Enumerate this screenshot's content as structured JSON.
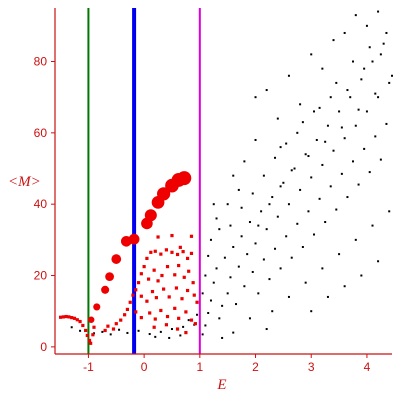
{
  "chart_data": {
    "type": "scatter",
    "title": "",
    "xlabel": "E",
    "ylabel": "<M>",
    "xlim": [
      -1.6,
      4.45
    ],
    "ylim": [
      -2,
      95
    ],
    "x_ticks": [
      -1,
      0,
      1,
      2,
      3,
      4
    ],
    "y_ticks": [
      0,
      20,
      40,
      60,
      80
    ],
    "grid": false,
    "legend": "none",
    "vertical_lines": [
      {
        "x": -1.0,
        "color": "#007700",
        "width": "thin"
      },
      {
        "x": -0.18,
        "color": "#0000ee",
        "width": "thick"
      },
      {
        "x": 1.0,
        "color": "#dd00dd",
        "width": "thin"
      }
    ],
    "series": [
      {
        "color": "#ee0000",
        "marker": "circle",
        "note": "large red points (ground-state branch, size grows with M)",
        "points": [
          [
            -0.95,
            7.6
          ],
          [
            -0.85,
            11.2
          ],
          [
            -0.7,
            16.0
          ],
          [
            -0.62,
            19.7
          ],
          [
            -0.5,
            24.6
          ],
          [
            -0.32,
            29.6
          ],
          [
            -0.18,
            30.2
          ],
          [
            0.05,
            34.6
          ],
          [
            0.12,
            36.9
          ],
          [
            0.25,
            40.5
          ],
          [
            0.35,
            42.9
          ],
          [
            0.5,
            45.2
          ],
          [
            0.62,
            46.8
          ],
          [
            0.72,
            47.3
          ]
        ]
      },
      {
        "color": "#ee0000",
        "marker": "square",
        "note": "small red points (E < 1 region)",
        "points": [
          [
            -1.5,
            8.3
          ],
          [
            -1.45,
            8.4
          ],
          [
            -1.4,
            8.5
          ],
          [
            -1.35,
            8.4
          ],
          [
            -1.3,
            8.2
          ],
          [
            -1.25,
            8.0
          ],
          [
            -1.2,
            7.6
          ],
          [
            -1.15,
            7.1
          ],
          [
            -1.1,
            6.0
          ],
          [
            -1.05,
            4.6
          ],
          [
            -1.02,
            3.2
          ],
          [
            -0.98,
            1.8
          ],
          [
            -0.96,
            1.0
          ],
          [
            -0.92,
            3.4
          ],
          [
            -0.9,
            5.5
          ],
          [
            -0.7,
            4.6
          ],
          [
            -0.65,
            5.8
          ],
          [
            -0.55,
            5.0
          ],
          [
            -0.5,
            6.5
          ],
          [
            -0.42,
            7.5
          ],
          [
            -0.35,
            9.0
          ],
          [
            -0.3,
            10.5
          ],
          [
            -0.25,
            12.5
          ],
          [
            -0.2,
            14.5
          ],
          [
            -0.15,
            16.0
          ],
          [
            -0.1,
            18.0
          ],
          [
            -0.05,
            20.5
          ],
          [
            0.0,
            22.5
          ],
          [
            0.05,
            24.8
          ],
          [
            0.12,
            26.5
          ],
          [
            0.2,
            26.8
          ],
          [
            0.3,
            26.0
          ],
          [
            0.4,
            27.2
          ],
          [
            0.5,
            26.5
          ],
          [
            0.6,
            25.9
          ],
          [
            0.7,
            26.7
          ],
          [
            0.78,
            24.8
          ],
          [
            0.85,
            26.2
          ],
          [
            0.08,
            19.0
          ],
          [
            0.18,
            21.5
          ],
          [
            0.25,
            18.5
          ],
          [
            0.32,
            20.0
          ],
          [
            0.42,
            22.5
          ],
          [
            0.55,
            20.2
          ],
          [
            0.62,
            22.8
          ],
          [
            0.72,
            19.5
          ],
          [
            0.8,
            21.2
          ],
          [
            0.88,
            18.0
          ],
          [
            -0.05,
            14.2
          ],
          [
            0.05,
            12.8
          ],
          [
            0.15,
            15.5
          ],
          [
            0.22,
            13.8
          ],
          [
            0.35,
            16.2
          ],
          [
            0.45,
            14.0
          ],
          [
            0.58,
            16.5
          ],
          [
            0.68,
            13.5
          ],
          [
            0.78,
            15.8
          ],
          [
            0.9,
            14.5
          ],
          [
            0.95,
            12.5
          ],
          [
            -0.15,
            9.8
          ],
          [
            -0.05,
            8.2
          ],
          [
            0.1,
            9.5
          ],
          [
            0.2,
            7.8
          ],
          [
            0.3,
            10.2
          ],
          [
            0.42,
            8.5
          ],
          [
            0.55,
            10.8
          ],
          [
            0.62,
            8.0
          ],
          [
            0.75,
            9.8
          ],
          [
            0.85,
            7.5
          ],
          [
            0.92,
            6.5
          ],
          [
            0.18,
            5.5
          ],
          [
            0.4,
            6.2
          ],
          [
            0.6,
            5.0
          ],
          [
            0.75,
            4.0
          ],
          [
            0.25,
            30.8
          ],
          [
            0.5,
            31.2
          ],
          [
            0.65,
            27.9
          ],
          [
            0.85,
            31.0
          ]
        ]
      },
      {
        "color": "#000000",
        "marker": "dot",
        "note": "small black points (excited states)",
        "points": [
          [
            -1.3,
            5.5
          ],
          [
            -1.15,
            4.5
          ],
          [
            -0.9,
            3.8
          ],
          [
            -0.75,
            4.2
          ],
          [
            -0.6,
            3.5
          ],
          [
            -0.45,
            4.8
          ],
          [
            -0.3,
            3.9
          ],
          [
            -0.1,
            4.5
          ],
          [
            0.1,
            3.6
          ],
          [
            0.3,
            4.2
          ],
          [
            0.5,
            5.0
          ],
          [
            0.7,
            5.6
          ],
          [
            0.9,
            6.2
          ],
          [
            0.2,
            2.8
          ],
          [
            0.45,
            2.5
          ],
          [
            0.65,
            3.2
          ],
          [
            0.8,
            7.5
          ],
          [
            0.95,
            9.0
          ],
          [
            1.05,
            3.5
          ],
          [
            1.1,
            6.0
          ],
          [
            1.15,
            9.5
          ],
          [
            1.2,
            13.0
          ],
          [
            1.25,
            18.0
          ],
          [
            1.3,
            22.0
          ],
          [
            1.35,
            8.0
          ],
          [
            1.4,
            11.5
          ],
          [
            1.45,
            25.0
          ],
          [
            1.5,
            15.0
          ],
          [
            1.55,
            19.5
          ],
          [
            1.6,
            28.0
          ],
          [
            1.65,
            12.0
          ],
          [
            1.7,
            22.5
          ],
          [
            1.75,
            31.0
          ],
          [
            1.8,
            17.0
          ],
          [
            1.85,
            26.0
          ],
          [
            1.9,
            35.0
          ],
          [
            1.95,
            21.0
          ],
          [
            2.0,
            29.0
          ],
          [
            2.05,
            15.0
          ],
          [
            2.1,
            38.0
          ],
          [
            2.15,
            24.5
          ],
          [
            2.2,
            33.0
          ],
          [
            2.25,
            19.0
          ],
          [
            2.3,
            42.0
          ],
          [
            2.35,
            27.5
          ],
          [
            2.4,
            36.5
          ],
          [
            2.45,
            22.0
          ],
          [
            2.5,
            46.0
          ],
          [
            2.55,
            31.0
          ],
          [
            2.6,
            40.0
          ],
          [
            2.65,
            25.0
          ],
          [
            2.7,
            50.0
          ],
          [
            2.75,
            34.5
          ],
          [
            2.8,
            44.0
          ],
          [
            2.85,
            28.0
          ],
          [
            2.9,
            54.0
          ],
          [
            2.95,
            38.0
          ],
          [
            3.0,
            47.5
          ],
          [
            3.05,
            31.5
          ],
          [
            3.1,
            58.0
          ],
          [
            3.15,
            41.5
          ],
          [
            3.2,
            51.0
          ],
          [
            3.25,
            35.0
          ],
          [
            3.3,
            62.0
          ],
          [
            3.35,
            45.0
          ],
          [
            3.4,
            55.0
          ],
          [
            3.45,
            38.5
          ],
          [
            3.5,
            66.0
          ],
          [
            3.55,
            48.5
          ],
          [
            3.6,
            58.5
          ],
          [
            3.65,
            42.0
          ],
          [
            3.7,
            70.0
          ],
          [
            3.75,
            52.0
          ],
          [
            3.8,
            62.0
          ],
          [
            3.85,
            45.5
          ],
          [
            3.9,
            75.0
          ],
          [
            3.95,
            55.5
          ],
          [
            4.0,
            66.0
          ],
          [
            4.05,
            49.0
          ],
          [
            4.1,
            80.0
          ],
          [
            4.15,
            59.0
          ],
          [
            4.2,
            70.0
          ],
          [
            4.25,
            52.5
          ],
          [
            4.3,
            85.0
          ],
          [
            4.35,
            62.5
          ],
          [
            4.4,
            74.0
          ],
          [
            2.0,
            70.0
          ],
          [
            2.2,
            72.0
          ],
          [
            2.4,
            64.0
          ],
          [
            2.6,
            76.0
          ],
          [
            2.8,
            68.0
          ],
          [
            3.0,
            82.0
          ],
          [
            3.2,
            78.0
          ],
          [
            3.4,
            86.0
          ],
          [
            3.6,
            88.0
          ],
          [
            3.8,
            93.0
          ],
          [
            4.0,
            90.0
          ],
          [
            4.2,
            94.0
          ],
          [
            1.6,
            48.0
          ],
          [
            1.8,
            52.0
          ],
          [
            2.0,
            58.0
          ],
          [
            1.5,
            40.0
          ],
          [
            1.7,
            44.0
          ],
          [
            1.3,
            36.0
          ],
          [
            1.2,
            30.0
          ],
          [
            2.3,
            10.0
          ],
          [
            2.6,
            14.0
          ],
          [
            2.9,
            18.0
          ],
          [
            3.2,
            22.0
          ],
          [
            3.5,
            26.0
          ],
          [
            3.8,
            30.0
          ],
          [
            4.1,
            34.0
          ],
          [
            4.4,
            38.0
          ],
          [
            1.9,
            8.0
          ],
          [
            2.2,
            5.0
          ],
          [
            1.6,
            4.0
          ],
          [
            1.4,
            2.5
          ],
          [
            3.0,
            10.0
          ],
          [
            3.3,
            14.0
          ],
          [
            3.6,
            17.0
          ],
          [
            3.9,
            20.0
          ],
          [
            4.2,
            24.0
          ],
          [
            2.45,
            56.0
          ],
          [
            2.75,
            60.0
          ],
          [
            3.05,
            66.0
          ],
          [
            3.35,
            70.0
          ],
          [
            3.65,
            72.0
          ],
          [
            3.95,
            78.0
          ],
          [
            4.25,
            82.0
          ],
          [
            1.1,
            20.0
          ],
          [
            1.05,
            15.0
          ],
          [
            1.15,
            25.5
          ],
          [
            1.25,
            40.0
          ],
          [
            1.35,
            33.0
          ],
          [
            1.55,
            34.0
          ],
          [
            1.75,
            39.0
          ],
          [
            1.95,
            43.0
          ],
          [
            2.15,
            48.0
          ],
          [
            2.35,
            53.0
          ],
          [
            2.55,
            57.0
          ],
          [
            2.85,
            63.0
          ],
          [
            3.15,
            67.0
          ],
          [
            3.45,
            74.0
          ],
          [
            3.75,
            80.0
          ],
          [
            4.05,
            84.0
          ],
          [
            4.35,
            88.0
          ],
          [
            2.05,
            34.0
          ],
          [
            2.25,
            40.0
          ],
          [
            2.45,
            45.0
          ],
          [
            2.65,
            49.5
          ],
          [
            2.95,
            53.5
          ],
          [
            3.25,
            57.5
          ],
          [
            3.55,
            61.5
          ],
          [
            3.85,
            66.5
          ],
          [
            4.15,
            71.0
          ],
          [
            4.45,
            76.0
          ]
        ]
      }
    ]
  }
}
